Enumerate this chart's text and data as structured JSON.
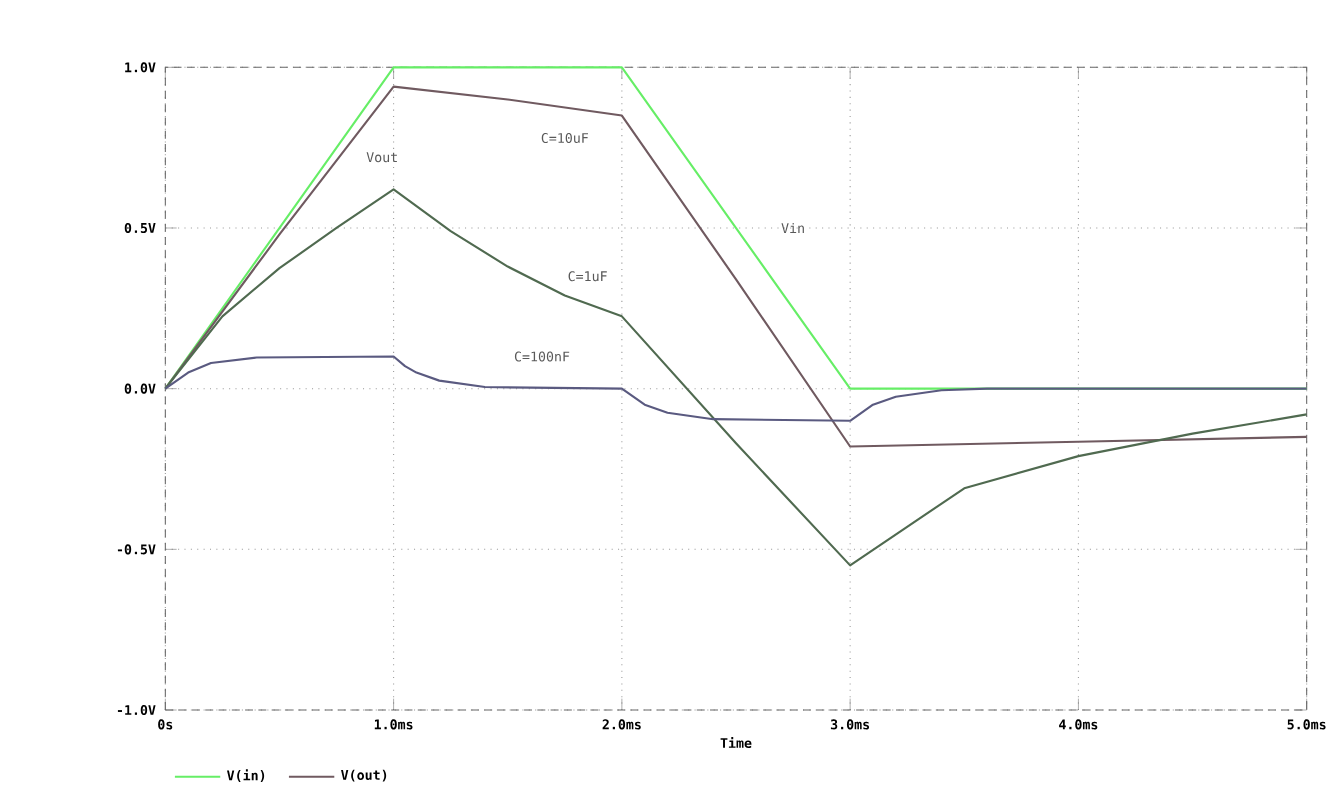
{
  "chart_data": {
    "type": "line",
    "xlabel": "Time",
    "grid": true,
    "legend": "bottom left",
    "xlim": [
      0,
      5
    ],
    "ylim": [
      -1,
      1
    ],
    "xticks": [
      {
        "value": 0,
        "label": "0s"
      },
      {
        "value": 1,
        "label": "1.0ms"
      },
      {
        "value": 2,
        "label": "2.0ms"
      },
      {
        "value": 3,
        "label": "3.0ms"
      },
      {
        "value": 4,
        "label": "4.0ms"
      },
      {
        "value": 5,
        "label": "5.0ms"
      }
    ],
    "yticks": [
      {
        "value": -1,
        "label": "-1.0V"
      },
      {
        "value": -0.5,
        "label": "-0.5V"
      },
      {
        "value": 0,
        "label": "0.0V"
      },
      {
        "value": 0.5,
        "label": "0.5V"
      },
      {
        "value": 1,
        "label": "1.0V"
      }
    ],
    "series": [
      {
        "name": "V(in)",
        "color": "#66ee66",
        "x": [
          0,
          1,
          2,
          3,
          5
        ],
        "values": [
          0,
          1,
          1,
          0,
          0
        ]
      },
      {
        "name": "V(out)",
        "color": "#705a60",
        "x": [
          0,
          0.5,
          1,
          1.5,
          2,
          2.5,
          3,
          4,
          5
        ],
        "values": [
          0,
          0.48,
          0.94,
          0.9,
          0.85,
          0.34,
          -0.18,
          -0.165,
          -0.15
        ]
      },
      {
        "color": "#506a50",
        "x": [
          0,
          0.25,
          0.5,
          0.75,
          1,
          1.25,
          1.5,
          1.75,
          2,
          2.5,
          3,
          3.5,
          4,
          4.5,
          5
        ],
        "values": [
          0,
          0.225,
          0.375,
          0.5,
          0.62,
          0.49,
          0.38,
          0.29,
          0.225,
          -0.17,
          -0.55,
          -0.31,
          -0.21,
          -0.14,
          -0.08
        ]
      },
      {
        "color": "#5a5a80",
        "x": [
          0,
          0.1,
          0.2,
          0.4,
          1,
          1.05,
          1.1,
          1.2,
          1.4,
          2,
          2.1,
          2.2,
          2.4,
          3,
          3.1,
          3.2,
          3.4,
          3.6,
          5
        ],
        "values": [
          0,
          0.05,
          0.08,
          0.097,
          0.1,
          0.07,
          0.05,
          0.025,
          0.005,
          0,
          -0.05,
          -0.075,
          -0.095,
          -0.1,
          -0.05,
          -0.025,
          -0.005,
          0,
          0
        ]
      }
    ],
    "annotations": [
      "Vout",
      "Vin",
      "C=10uF",
      "C=1uF",
      "C=100nF"
    ]
  }
}
